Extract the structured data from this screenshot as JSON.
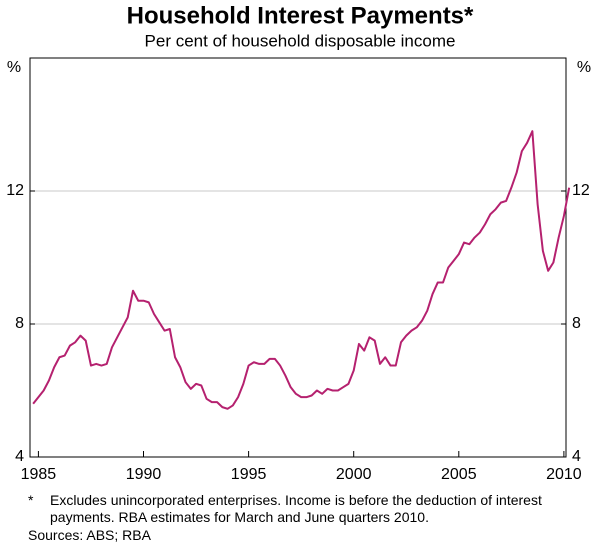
{
  "chart_data": {
    "type": "line",
    "title": "Household Interest Payments*",
    "subtitle": "Per cent of household disposable income",
    "y_unit": "%",
    "note_marker": "*",
    "note": "Excludes unincorporated enterprises. Income is before the deduction of interest payments. RBA estimates for March and June quarters 2010.",
    "source": "Sources: ABS; RBA",
    "x": [
      1984.75,
      1985,
      1985.25,
      1985.5,
      1985.75,
      1986,
      1986.25,
      1986.5,
      1986.75,
      1987,
      1987.25,
      1987.5,
      1987.75,
      1988,
      1988.25,
      1988.5,
      1988.75,
      1989,
      1989.25,
      1989.5,
      1989.75,
      1990,
      1990.25,
      1990.5,
      1990.75,
      1991,
      1991.25,
      1991.5,
      1991.75,
      1992,
      1992.25,
      1992.5,
      1992.75,
      1993,
      1993.25,
      1993.5,
      1993.75,
      1994,
      1994.25,
      1994.5,
      1994.75,
      1995,
      1995.25,
      1995.5,
      1995.75,
      1996,
      1996.25,
      1996.5,
      1996.75,
      1997,
      1997.25,
      1997.5,
      1997.75,
      1998,
      1998.25,
      1998.5,
      1998.75,
      1999,
      1999.25,
      1999.5,
      1999.75,
      2000,
      2000.25,
      2000.5,
      2000.75,
      2001,
      2001.25,
      2001.5,
      2001.75,
      2002,
      2002.25,
      2002.5,
      2002.75,
      2003,
      2003.25,
      2003.5,
      2003.75,
      2004,
      2004.25,
      2004.5,
      2004.75,
      2005,
      2005.25,
      2005.5,
      2005.75,
      2006,
      2006.25,
      2006.5,
      2006.75,
      2007,
      2007.25,
      2007.5,
      2007.75,
      2008,
      2008.25,
      2008.5,
      2008.75,
      2009,
      2009.25,
      2009.5,
      2009.75,
      2010,
      2010.25
    ],
    "series": [
      {
        "name": "Household interest payments",
        "color": "#b5216f",
        "values": [
          5.6,
          5.8,
          6.0,
          6.3,
          6.7,
          7.0,
          7.05,
          7.35,
          7.45,
          7.65,
          7.5,
          6.75,
          6.8,
          6.75,
          6.8,
          7.3,
          7.6,
          7.9,
          8.2,
          9.0,
          8.7,
          8.7,
          8.65,
          8.3,
          8.05,
          7.8,
          7.85,
          7.0,
          6.7,
          6.25,
          6.05,
          6.2,
          6.15,
          5.75,
          5.65,
          5.65,
          5.5,
          5.45,
          5.55,
          5.8,
          6.2,
          6.75,
          6.85,
          6.8,
          6.8,
          6.95,
          6.95,
          6.75,
          6.45,
          6.1,
          5.9,
          5.8,
          5.8,
          5.85,
          6.0,
          5.9,
          6.05,
          6.0,
          6.0,
          6.1,
          6.2,
          6.6,
          7.4,
          7.2,
          7.6,
          7.5,
          6.8,
          7.0,
          6.75,
          6.75,
          7.45,
          7.65,
          7.8,
          7.9,
          8.1,
          8.4,
          8.9,
          9.25,
          9.25,
          9.7,
          9.9,
          10.1,
          10.45,
          10.4,
          10.6,
          10.75,
          11.0,
          11.3,
          11.45,
          11.65,
          11.7,
          12.1,
          12.55,
          13.2,
          13.45,
          13.8,
          11.6,
          10.2,
          9.6,
          9.85,
          10.6,
          11.25,
          12.1
        ]
      }
    ],
    "xlim": [
      1984.6,
      2010.1
    ],
    "xticks": [
      1985,
      1990,
      1995,
      2000,
      2005,
      2010
    ],
    "ylim": [
      4,
      16
    ],
    "yticks": [
      4,
      8,
      12
    ],
    "grid": true
  }
}
